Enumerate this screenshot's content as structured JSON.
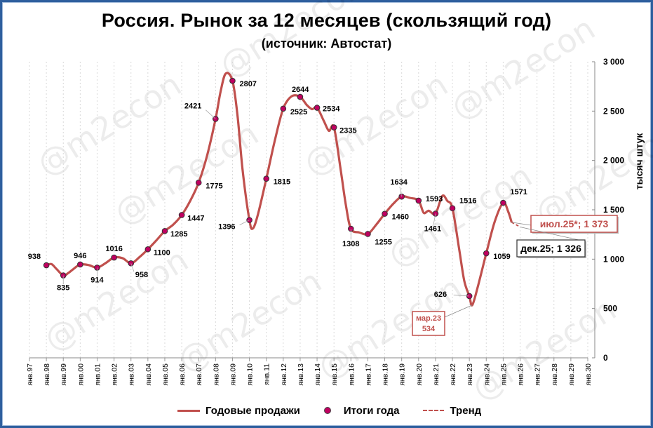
{
  "title": "Россия. Рынок за 12 месяцев (скользящий год)",
  "subtitle": "(источник: Автостат)",
  "watermark": "@m2econ",
  "y_axis_title": "тысяч штук",
  "legend": {
    "sales": "Годовые продажи",
    "year_totals": "Итоги года",
    "trend": "Тренд"
  },
  "colors": {
    "line": "#c0504d",
    "dot": "#c00060",
    "trend": "#c0504d",
    "accent_box": "#c0504d"
  },
  "chart_data": {
    "type": "line",
    "title": "Россия. Рынок за 12 месяцев (скользящий год)",
    "ylabel": "тысяч штук",
    "ylim": [
      0,
      3000
    ],
    "y_ticks": [
      0,
      500,
      1000,
      1500,
      2000,
      2500,
      3000
    ],
    "y_tick_labels": [
      "0",
      "500",
      "1 000",
      "1 500",
      "2 000",
      "2 500",
      "3 000"
    ],
    "x_tick_labels": [
      "янв.97",
      "янв.98",
      "янв.99",
      "янв.00",
      "янв.01",
      "янв.02",
      "янв.03",
      "янв.04",
      "янв.05",
      "янв.06",
      "янв.07",
      "янв.08",
      "янв.09",
      "янв.10",
      "янв.11",
      "янв.12",
      "янв.13",
      "янв.14",
      "янв.15",
      "янв.16",
      "янв.17",
      "янв.18",
      "янв.19",
      "янв.20",
      "янв.21",
      "янв.22",
      "янв.23",
      "янв.24",
      "янв.25",
      "янв.26",
      "янв.27",
      "янв.28",
      "янв.29",
      "янв.30"
    ],
    "x_start_year": 1997,
    "series": [
      {
        "name": "Годовые продажи",
        "points": [
          [
            1998.0,
            938
          ],
          [
            1998.3,
            950
          ],
          [
            1998.6,
            900
          ],
          [
            1999.0,
            835
          ],
          [
            1999.3,
            860
          ],
          [
            1999.6,
            900
          ],
          [
            2000.0,
            946
          ],
          [
            2000.5,
            940
          ],
          [
            2001.0,
            914
          ],
          [
            2001.5,
            960
          ],
          [
            2002.0,
            1016
          ],
          [
            2002.5,
            1010
          ],
          [
            2003.0,
            958
          ],
          [
            2003.5,
            1020
          ],
          [
            2004.0,
            1100
          ],
          [
            2004.5,
            1190
          ],
          [
            2005.0,
            1285
          ],
          [
            2005.5,
            1350
          ],
          [
            2006.0,
            1447
          ],
          [
            2006.5,
            1590
          ],
          [
            2007.0,
            1775
          ],
          [
            2007.5,
            2050
          ],
          [
            2008.0,
            2421
          ],
          [
            2008.3,
            2700
          ],
          [
            2008.6,
            2880
          ],
          [
            2009.0,
            2807
          ],
          [
            2009.3,
            2450
          ],
          [
            2009.6,
            1900
          ],
          [
            2010.0,
            1396
          ],
          [
            2010.2,
            1310
          ],
          [
            2010.5,
            1450
          ],
          [
            2011.0,
            1815
          ],
          [
            2011.5,
            2200
          ],
          [
            2012.0,
            2525
          ],
          [
            2012.5,
            2650
          ],
          [
            2013.0,
            2644
          ],
          [
            2013.4,
            2560
          ],
          [
            2013.7,
            2520
          ],
          [
            2014.0,
            2534
          ],
          [
            2014.4,
            2400
          ],
          [
            2014.7,
            2300
          ],
          [
            2015.0,
            2335
          ],
          [
            2015.4,
            1900
          ],
          [
            2015.7,
            1550
          ],
          [
            2016.0,
            1308
          ],
          [
            2016.5,
            1270
          ],
          [
            2017.0,
            1255
          ],
          [
            2017.5,
            1350
          ],
          [
            2018.0,
            1460
          ],
          [
            2018.5,
            1560
          ],
          [
            2019.0,
            1634
          ],
          [
            2019.5,
            1620
          ],
          [
            2020.0,
            1593
          ],
          [
            2020.3,
            1470
          ],
          [
            2020.6,
            1490
          ],
          [
            2021.0,
            1461
          ],
          [
            2021.4,
            1640
          ],
          [
            2021.7,
            1590
          ],
          [
            2022.0,
            1516
          ],
          [
            2022.4,
            1100
          ],
          [
            2022.7,
            780
          ],
          [
            2023.0,
            626
          ],
          [
            2023.17,
            534
          ],
          [
            2023.5,
            720
          ],
          [
            2024.0,
            1059
          ],
          [
            2024.5,
            1380
          ],
          [
            2025.0,
            1571
          ],
          [
            2025.3,
            1480
          ],
          [
            2025.5,
            1373
          ]
        ]
      },
      {
        "name": "Итоги года",
        "points": [
          [
            1998.0,
            938
          ],
          [
            1999.0,
            835
          ],
          [
            2000.0,
            946
          ],
          [
            2001.0,
            914
          ],
          [
            2002.0,
            1016
          ],
          [
            2003.0,
            958
          ],
          [
            2004.0,
            1100
          ],
          [
            2005.0,
            1285
          ],
          [
            2006.0,
            1447
          ],
          [
            2007.0,
            1775
          ],
          [
            2008.0,
            2421
          ],
          [
            2009.0,
            2807
          ],
          [
            2010.0,
            1396
          ],
          [
            2011.0,
            1815
          ],
          [
            2012.0,
            2525
          ],
          [
            2013.0,
            2644
          ],
          [
            2014.0,
            2534
          ],
          [
            2015.0,
            2335
          ],
          [
            2016.0,
            1308
          ],
          [
            2017.0,
            1255
          ],
          [
            2018.0,
            1460
          ],
          [
            2019.0,
            1634
          ],
          [
            2020.0,
            1593
          ],
          [
            2021.0,
            1461
          ],
          [
            2022.0,
            1516
          ],
          [
            2023.0,
            626
          ],
          [
            2024.0,
            1059
          ],
          [
            2025.0,
            1571
          ]
        ]
      },
      {
        "name": "Тренд",
        "points": [
          [
            2025.5,
            1373
          ],
          [
            2025.75,
            1350
          ],
          [
            2026.0,
            1326
          ]
        ]
      }
    ],
    "annotations": [
      {
        "label": "мар.23\n534",
        "x": 2023.17,
        "y": 534
      },
      {
        "label": "июл.25*; 1 373",
        "x": 2025.5,
        "y": 1373
      },
      {
        "label": "дек.25; 1 326",
        "x": 2026.0,
        "y": 1326
      }
    ]
  }
}
